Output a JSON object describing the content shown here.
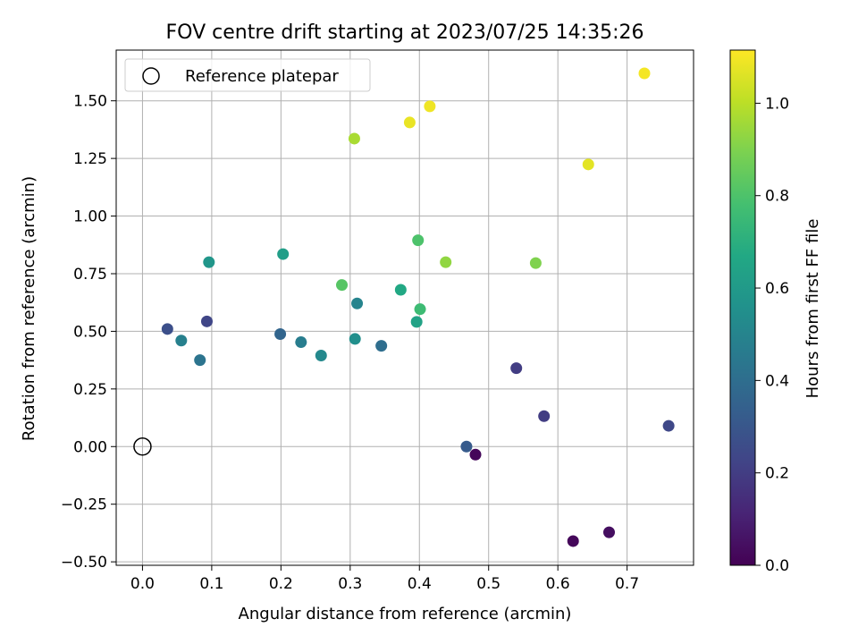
{
  "chart_data": {
    "type": "scatter",
    "title": "FOV centre drift starting at 2023/07/25 14:35:26",
    "xlabel": "Angular distance from reference (arcmin)",
    "ylabel": "Rotation from reference (arcmin)",
    "xlim": [
      -0.038,
      0.796
    ],
    "ylim": [
      -0.515,
      1.72
    ],
    "x_ticks": [
      0.0,
      0.1,
      0.2,
      0.3,
      0.4,
      0.5,
      0.6,
      0.7
    ],
    "x_tick_labels": [
      "0.0",
      "0.1",
      "0.2",
      "0.3",
      "0.4",
      "0.5",
      "0.6",
      "0.7"
    ],
    "y_ticks": [
      -0.5,
      -0.25,
      0.0,
      0.25,
      0.5,
      0.75,
      1.0,
      1.25,
      1.5
    ],
    "y_tick_labels": [
      "−0.50",
      "−0.25",
      "0.00",
      "0.25",
      "0.50",
      "0.75",
      "1.00",
      "1.25",
      "1.50"
    ],
    "grid": true,
    "colormap": "viridis",
    "colorbar": {
      "label": "Hours from first FF file",
      "range": [
        0.0,
        1.115
      ],
      "ticks": [
        0.0,
        0.2,
        0.4,
        0.6,
        0.8,
        1.0
      ],
      "tick_labels": [
        "0.0",
        "0.2",
        "0.4",
        "0.6",
        "0.8",
        "1.0"
      ]
    },
    "legend": {
      "position": "top-left",
      "entries": [
        {
          "label": "Reference platepar",
          "marker": "open-circle"
        }
      ]
    },
    "reference_point": {
      "x": 0.0,
      "y": 0.0
    },
    "points": [
      {
        "x": 0.481,
        "y": -0.035,
        "c": 0.02
      },
      {
        "x": 0.622,
        "y": -0.41,
        "c": 0.02
      },
      {
        "x": 0.674,
        "y": -0.372,
        "c": 0.04
      },
      {
        "x": 0.58,
        "y": 0.132,
        "c": 0.2
      },
      {
        "x": 0.54,
        "y": 0.34,
        "c": 0.2
      },
      {
        "x": 0.76,
        "y": 0.09,
        "c": 0.24
      },
      {
        "x": 0.093,
        "y": 0.543,
        "c": 0.23
      },
      {
        "x": 0.036,
        "y": 0.51,
        "c": 0.27
      },
      {
        "x": 0.468,
        "y": 0.0,
        "c": 0.32
      },
      {
        "x": 0.199,
        "y": 0.488,
        "c": 0.36
      },
      {
        "x": 0.345,
        "y": 0.437,
        "c": 0.4
      },
      {
        "x": 0.083,
        "y": 0.375,
        "c": 0.43
      },
      {
        "x": 0.229,
        "y": 0.453,
        "c": 0.47
      },
      {
        "x": 0.056,
        "y": 0.46,
        "c": 0.48
      },
      {
        "x": 0.31,
        "y": 0.621,
        "c": 0.5
      },
      {
        "x": 0.258,
        "y": 0.395,
        "c": 0.52
      },
      {
        "x": 0.307,
        "y": 0.467,
        "c": 0.55
      },
      {
        "x": 0.096,
        "y": 0.8,
        "c": 0.58
      },
      {
        "x": 0.203,
        "y": 0.835,
        "c": 0.62
      },
      {
        "x": 0.396,
        "y": 0.541,
        "c": 0.64
      },
      {
        "x": 0.373,
        "y": 0.68,
        "c": 0.67
      },
      {
        "x": 0.401,
        "y": 0.596,
        "c": 0.76
      },
      {
        "x": 0.398,
        "y": 0.895,
        "c": 0.8
      },
      {
        "x": 0.288,
        "y": 0.701,
        "c": 0.82
      },
      {
        "x": 0.568,
        "y": 0.796,
        "c": 0.9
      },
      {
        "x": 0.438,
        "y": 0.8,
        "c": 0.93
      },
      {
        "x": 0.306,
        "y": 1.336,
        "c": 0.97
      },
      {
        "x": 0.644,
        "y": 1.224,
        "c": 1.07
      },
      {
        "x": 0.386,
        "y": 1.406,
        "c": 1.08
      },
      {
        "x": 0.415,
        "y": 1.476,
        "c": 1.09
      },
      {
        "x": 0.725,
        "y": 1.619,
        "c": 1.1
      }
    ]
  }
}
